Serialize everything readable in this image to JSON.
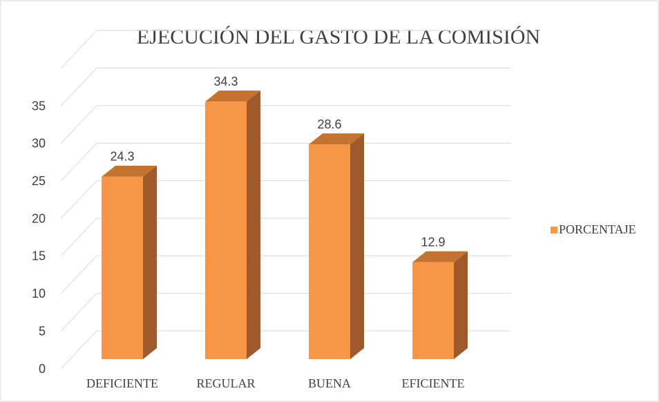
{
  "chart_data": {
    "type": "bar3d",
    "title": "EJECUCIÓN DEL GASTO DE LA COMISIÓN",
    "categories": [
      "DEFICIENTE",
      "REGULAR",
      "BUENA",
      "EFICIENTE"
    ],
    "series": [
      {
        "name": "PORCENTAJE",
        "color": "#f79646",
        "values": [
          24.3,
          34.3,
          28.6,
          12.9
        ]
      }
    ],
    "ylim": [
      0,
      40
    ],
    "yticks": [
      0,
      5,
      10,
      15,
      20,
      25,
      30,
      35
    ],
    "grid": true,
    "legend": "right"
  }
}
